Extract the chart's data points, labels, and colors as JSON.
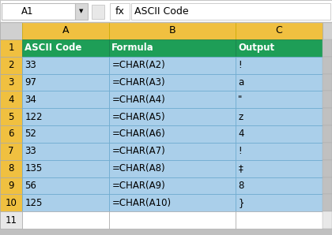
{
  "formula_bar_text": "ASCII Code",
  "cell_ref": "A1",
  "col_headers": [
    "A",
    "B",
    "C"
  ],
  "row_numbers": [
    "1",
    "2",
    "3",
    "4",
    "5",
    "6",
    "7",
    "8",
    "9",
    "10",
    "11"
  ],
  "header_row": [
    "ASCII Code",
    "Formula",
    "Output"
  ],
  "data_rows": [
    [
      "33",
      "=CHAR(A2)",
      "!"
    ],
    [
      "97",
      "=CHAR(A3)",
      "a"
    ],
    [
      "34",
      "=CHAR(A4)",
      "\""
    ],
    [
      "122",
      "=CHAR(A5)",
      "z"
    ],
    [
      "52",
      "=CHAR(A6)",
      "4"
    ],
    [
      "33",
      "=CHAR(A7)",
      "!"
    ],
    [
      "135",
      "=CHAR(A8)",
      "‡"
    ],
    [
      "56",
      "=CHAR(A9)",
      "8"
    ],
    [
      "125",
      "=CHAR(A10)",
      "}"
    ]
  ],
  "header_bg": "#1e9e57",
  "header_fg": "#ffffff",
  "data_bg": "#aacfea",
  "data_fg": "#000000",
  "col_header_bg": "#f0c040",
  "row_header_bg": "#f0c040",
  "empty_row_bg": "#ffffff",
  "toolbar_bg": "#f2f2f2",
  "outer_bg": "#c0c0c0",
  "border_dark": "#888888",
  "border_light": "#bbbbbb",
  "grid_inner": "#6aaacf",
  "col_header_border": "#ccaa00"
}
